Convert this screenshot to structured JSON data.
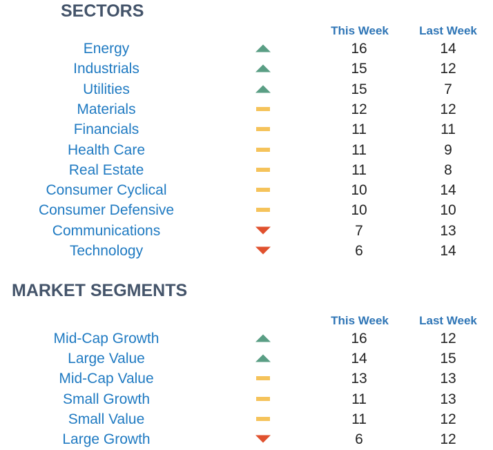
{
  "sectors": {
    "title": "SECTORS",
    "headers": {
      "this_week": "This Week",
      "last_week": "Last Week"
    },
    "rows": [
      {
        "name": "Energy",
        "trend": "up",
        "this_week": "16",
        "last_week": "14"
      },
      {
        "name": "Industrials",
        "trend": "up",
        "this_week": "15",
        "last_week": "12"
      },
      {
        "name": "Utilities",
        "trend": "up",
        "this_week": "15",
        "last_week": "7"
      },
      {
        "name": "Materials",
        "trend": "flat",
        "this_week": "12",
        "last_week": "12"
      },
      {
        "name": "Financials",
        "trend": "flat",
        "this_week": "11",
        "last_week": "11"
      },
      {
        "name": "Health Care",
        "trend": "flat",
        "this_week": "11",
        "last_week": "9"
      },
      {
        "name": "Real Estate",
        "trend": "flat",
        "this_week": "11",
        "last_week": "8"
      },
      {
        "name": "Consumer Cyclical",
        "trend": "flat",
        "this_week": "10",
        "last_week": "14"
      },
      {
        "name": "Consumer Defensive",
        "trend": "flat",
        "this_week": "10",
        "last_week": "10"
      },
      {
        "name": "Communications",
        "trend": "down",
        "this_week": "7",
        "last_week": "13"
      },
      {
        "name": "Technology",
        "trend": "down",
        "this_week": "6",
        "last_week": "14"
      }
    ]
  },
  "segments": {
    "title": "MARKET SEGMENTS",
    "headers": {
      "this_week": "This Week",
      "last_week": "Last Week"
    },
    "rows": [
      {
        "name": "Mid-Cap Growth",
        "trend": "up",
        "this_week": "16",
        "last_week": "12"
      },
      {
        "name": "Large Value",
        "trend": "up",
        "this_week": "14",
        "last_week": "15"
      },
      {
        "name": "Mid-Cap Value",
        "trend": "flat",
        "this_week": "13",
        "last_week": "13"
      },
      {
        "name": "Small Growth",
        "trend": "flat",
        "this_week": "11",
        "last_week": "13"
      },
      {
        "name": "Small Value",
        "trend": "flat",
        "this_week": "11",
        "last_week": "12"
      },
      {
        "name": "Large Growth",
        "trend": "down",
        "this_week": "6",
        "last_week": "12"
      }
    ]
  },
  "colors": {
    "title": "#44546a",
    "header": "#2e75b6",
    "name": "#1f7ac2",
    "up": "#5a9e84",
    "flat": "#f5c35b",
    "down": "#e0512e"
  }
}
